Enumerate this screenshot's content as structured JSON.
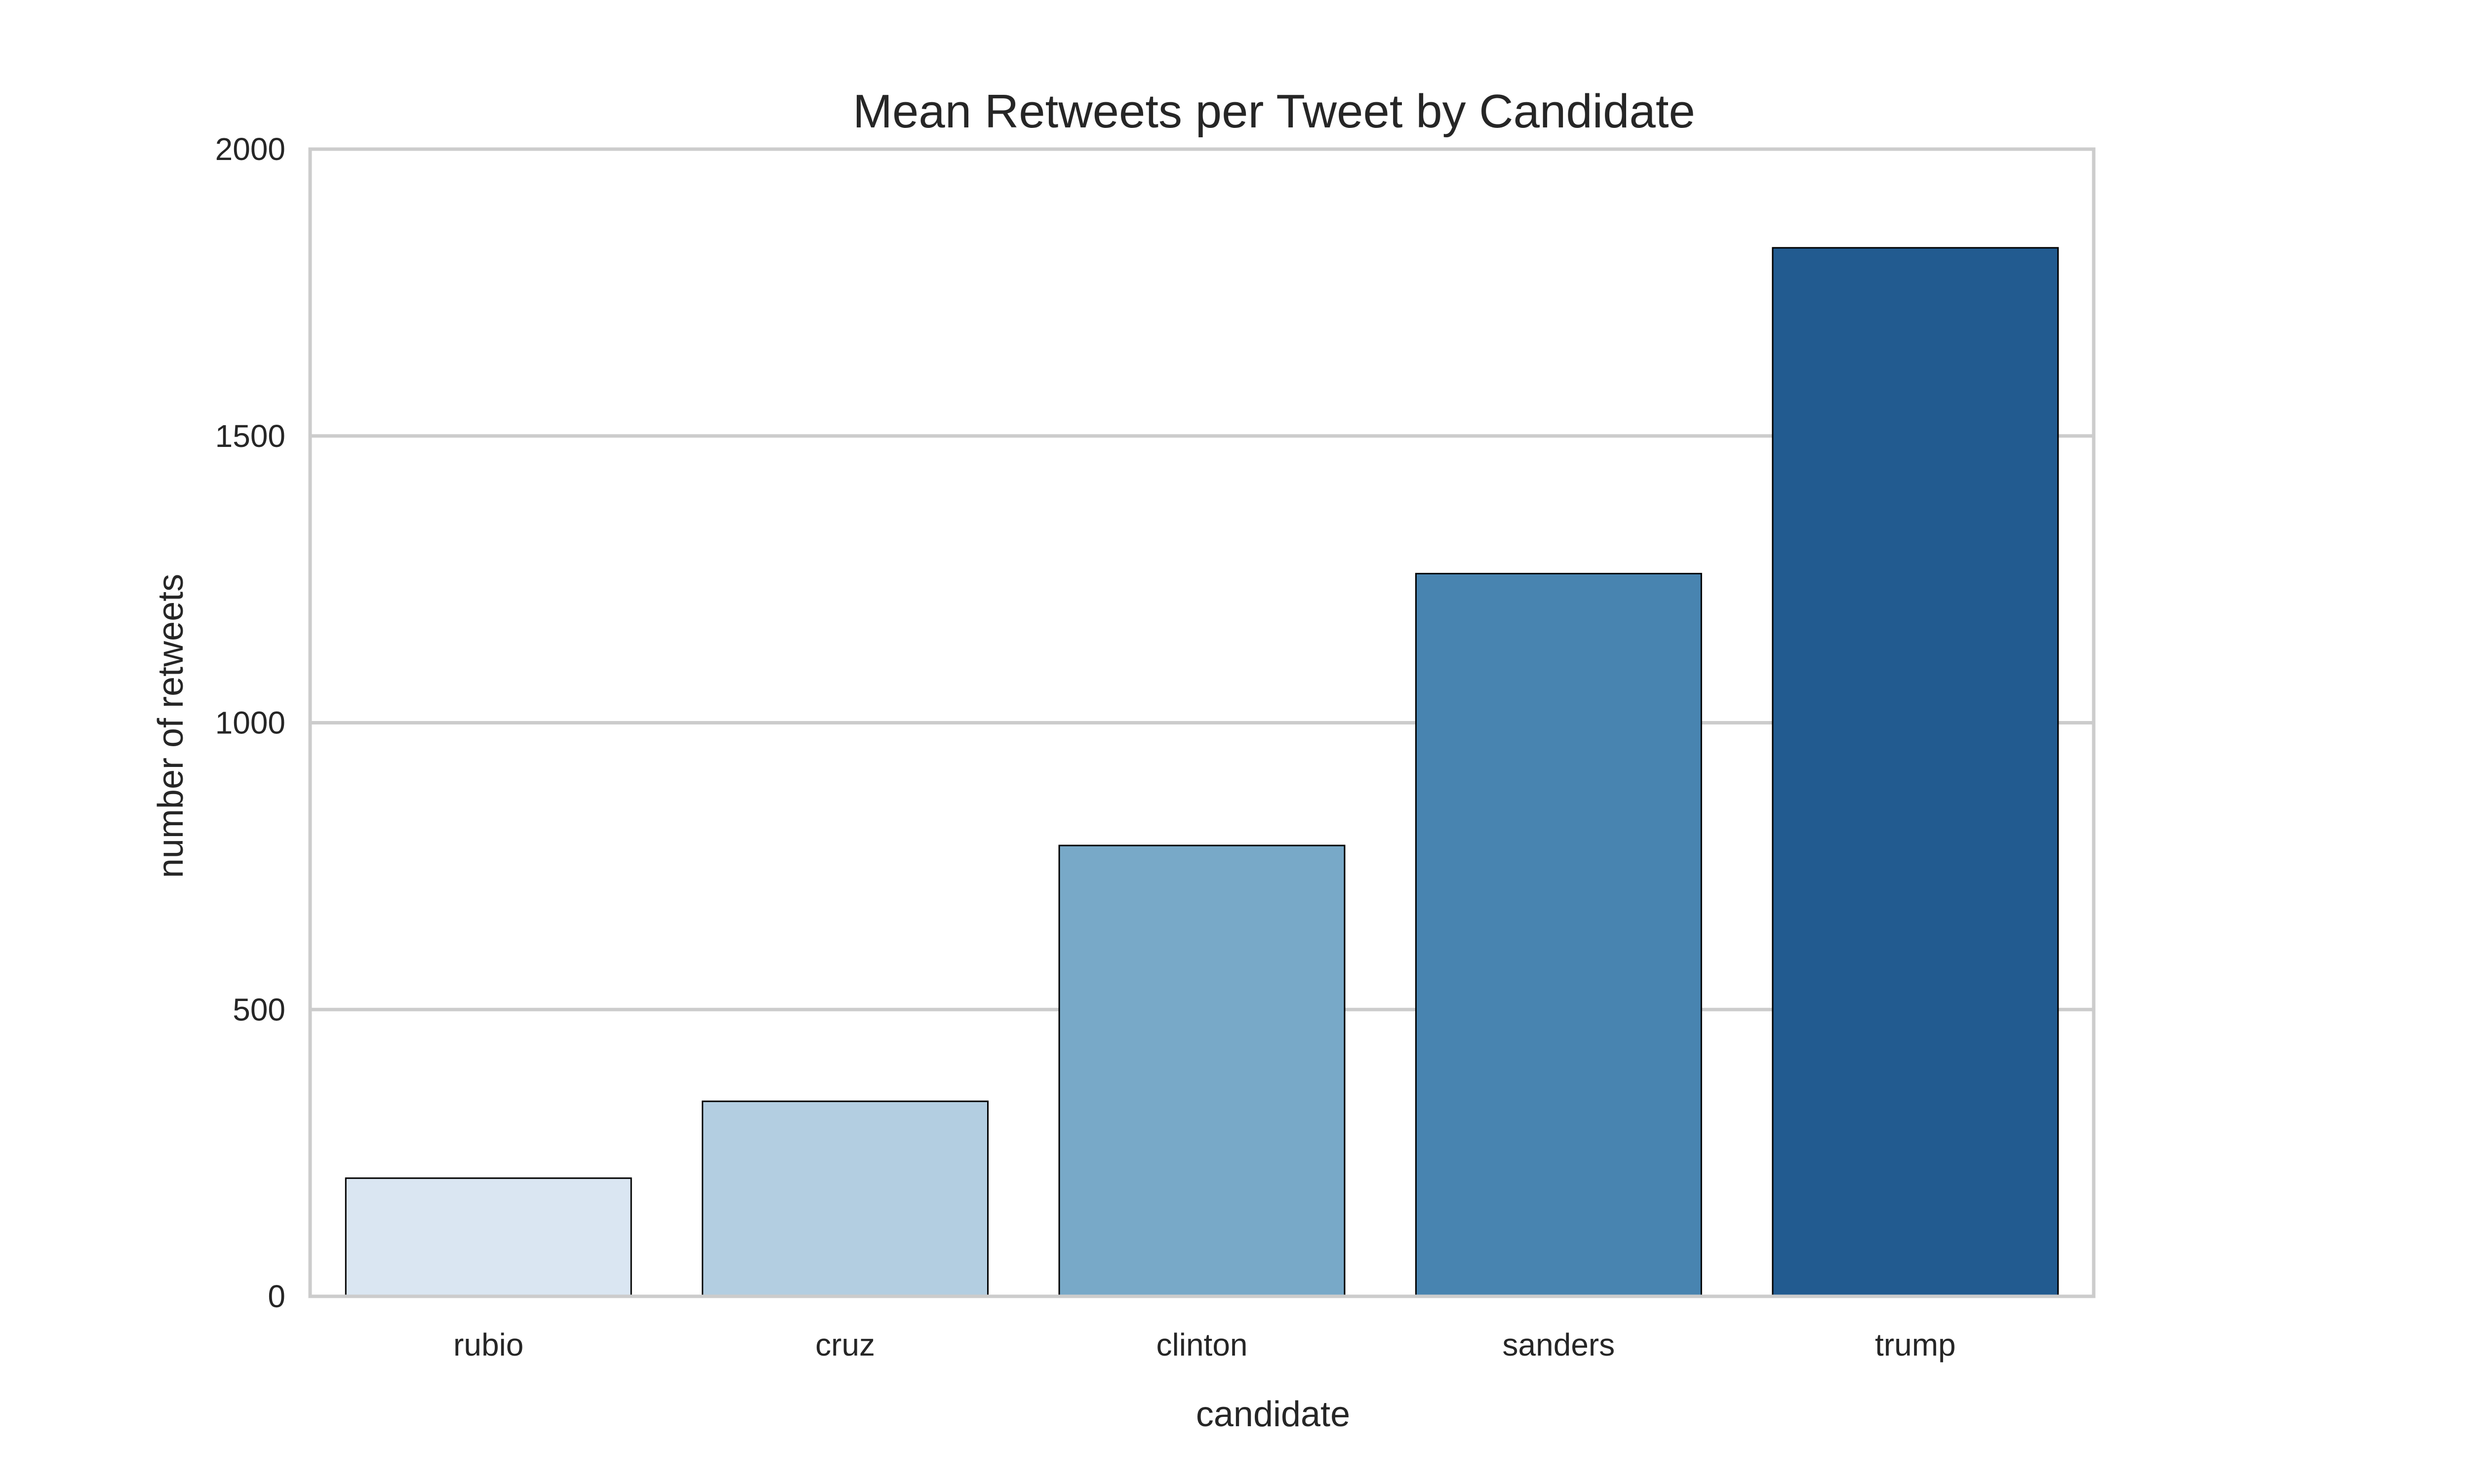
{
  "chart_data": {
    "type": "bar",
    "title": "Mean Retweets per Tweet by Candidate",
    "xlabel": "candidate",
    "ylabel": "number of retweets",
    "categories": [
      "rubio",
      "cruz",
      "clinton",
      "sanders",
      "trump"
    ],
    "values": [
      206,
      340,
      786,
      1260,
      1828
    ],
    "colors": [
      "#dae6f2",
      "#b3cee1",
      "#78a9c8",
      "#4884b0",
      "#225b90"
    ],
    "ylim": [
      0,
      2000
    ],
    "yticks": [
      0,
      500,
      1000,
      1500,
      2000
    ],
    "ytick_labels": [
      "0",
      "500",
      "1000",
      "1500",
      "2000"
    ],
    "grid": true,
    "grid_axis": "y",
    "legend": null,
    "style": {
      "grid_color": "#cccccc",
      "spine_color": "#cccccc",
      "bar_edge_color": "#000000",
      "text_color": "#262626",
      "background": "#ffffff"
    }
  }
}
